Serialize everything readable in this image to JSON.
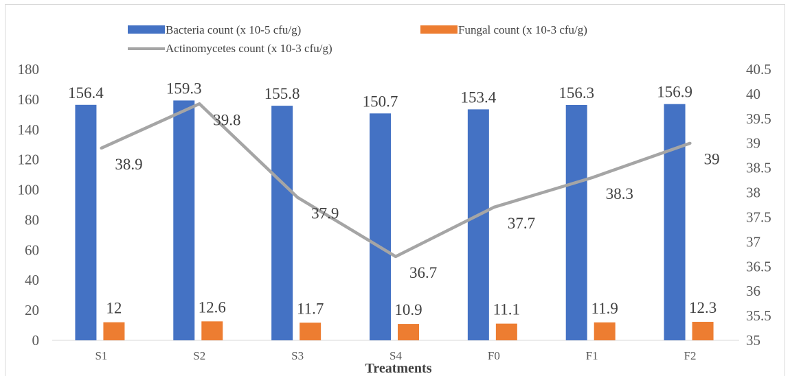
{
  "chart_data": {
    "type": "bar",
    "xlabel": "Treatments",
    "categories": [
      "S1",
      "S2",
      "S3",
      "S4",
      "F0",
      "F1",
      "F2"
    ],
    "series": [
      {
        "name": "Bacteria count (x 10-5 cfu/g)",
        "type": "bar",
        "axis": "left",
        "color": "#4472C4",
        "values": [
          156.4,
          159.3,
          155.8,
          150.7,
          153.4,
          156.3,
          156.9
        ]
      },
      {
        "name": "Fungal count (x 10-3 cfu/g)",
        "type": "bar",
        "axis": "left",
        "color": "#ED7D31",
        "values": [
          12,
          12.6,
          11.7,
          10.9,
          11.1,
          11.9,
          12.3
        ]
      },
      {
        "name": "Actinomycetes count (x 10-3 cfu/g)",
        "type": "line",
        "axis": "right",
        "color": "#A5A5A5",
        "values": [
          38.9,
          39.8,
          37.9,
          36.7,
          37.7,
          38.3,
          39
        ]
      }
    ],
    "ylim_left": [
      0,
      180
    ],
    "yticks_left": [
      "0",
      "20",
      "40",
      "60",
      "80",
      "100",
      "120",
      "140",
      "160",
      "180"
    ],
    "ylim_right": [
      35,
      40.5
    ],
    "yticks_right": [
      "35",
      "35.5",
      "36",
      "36.5",
      "37",
      "37.5",
      "38",
      "38.5",
      "39",
      "39.5",
      "40",
      "40.5"
    ],
    "legend_position": "top",
    "grid": false
  }
}
